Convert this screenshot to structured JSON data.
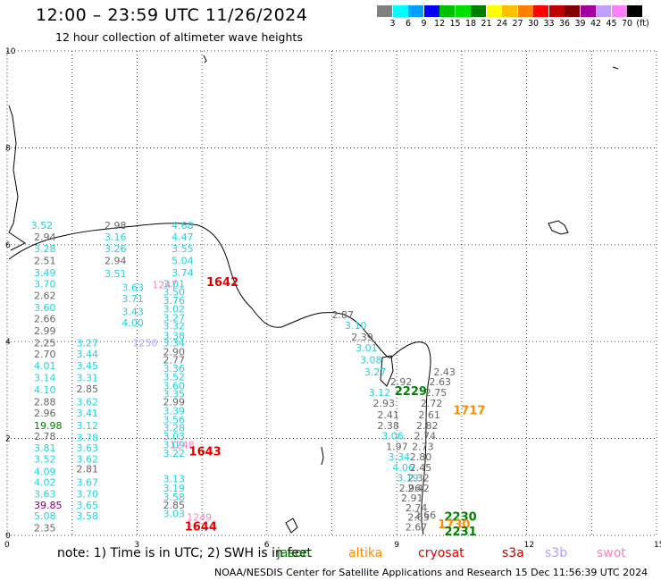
{
  "header": {
    "title": "12:00 – 23:59 UTC 11/26/2024",
    "subtitle": "12 hour collection of altimeter wave heights"
  },
  "colorbar": {
    "colors": [
      "#808080",
      "#00ffff",
      "#00a0ff",
      "#0000ff",
      "#00c000",
      "#00e000",
      "#008000",
      "#ffff00",
      "#ffc000",
      "#ff8000",
      "#ff0000",
      "#c00000",
      "#800000",
      "#a000a0",
      "#c0a0ff",
      "#ff80ff",
      "#000000"
    ],
    "tick_labels": [
      "3",
      "6",
      "9",
      "12",
      "15",
      "18",
      "21",
      "24",
      "27",
      "30",
      "33",
      "36",
      "39",
      "42",
      "45",
      "70",
      "(ft)"
    ]
  },
  "map": {
    "y_ticks": [
      "10",
      "8",
      "6",
      "4",
      "2",
      "0"
    ],
    "x_ticks": [
      "0",
      "3",
      "6",
      "9",
      "12",
      "15"
    ],
    "colors": {
      "jason": "#008000",
      "altika": "#ff8c00",
      "cryosat": "#e00000",
      "s3a": "#c00000",
      "s3b": "#b0a0ff",
      "swot": "#ff80c0",
      "gray": "#666666",
      "cyan": "#22d0e0",
      "purple": "#800080"
    },
    "observations": [
      {
        "text": "3.52",
        "c": "cyan",
        "x": 0.55,
        "y": 6.33
      },
      {
        "text": "2.98",
        "c": "gray",
        "x": 2.25,
        "y": 6.33
      },
      {
        "text": "2.94",
        "c": "gray",
        "x": 0.62,
        "y": 6.09
      },
      {
        "text": "3.16",
        "c": "cyan",
        "x": 2.25,
        "y": 6.09
      },
      {
        "text": "3.28",
        "c": "cyan",
        "x": 0.62,
        "y": 5.85
      },
      {
        "text": "3.26",
        "c": "cyan",
        "x": 2.25,
        "y": 5.85
      },
      {
        "text": "2.51",
        "c": "gray",
        "x": 0.62,
        "y": 5.6
      },
      {
        "text": "2.94",
        "c": "gray",
        "x": 2.25,
        "y": 5.6
      },
      {
        "text": "3.49",
        "c": "cyan",
        "x": 0.62,
        "y": 5.35
      },
      {
        "text": "3.51",
        "c": "cyan",
        "x": 2.25,
        "y": 5.33
      },
      {
        "text": "3.70",
        "c": "cyan",
        "x": 0.62,
        "y": 5.12
      },
      {
        "text": "3.63",
        "c": "cyan",
        "x": 2.65,
        "y": 5.05
      },
      {
        "text": "2.62",
        "c": "gray",
        "x": 0.62,
        "y": 4.88
      },
      {
        "text": "3.71",
        "c": "cyan",
        "x": 2.65,
        "y": 4.82
      },
      {
        "text": "3.60",
        "c": "cyan",
        "x": 0.62,
        "y": 4.63
      },
      {
        "text": "3.43",
        "c": "cyan",
        "x": 2.65,
        "y": 4.55
      },
      {
        "text": "2.66",
        "c": "gray",
        "x": 0.62,
        "y": 4.4
      },
      {
        "text": "4.00",
        "c": "cyan",
        "x": 2.65,
        "y": 4.32
      },
      {
        "text": "2.99",
        "c": "gray",
        "x": 0.62,
        "y": 4.15
      },
      {
        "text": "2.25",
        "c": "gray",
        "x": 0.62,
        "y": 3.9
      },
      {
        "text": "3.27",
        "c": "cyan",
        "x": 1.6,
        "y": 3.9
      },
      {
        "text": "2.70",
        "c": "gray",
        "x": 0.62,
        "y": 3.67
      },
      {
        "text": "3.44",
        "c": "cyan",
        "x": 1.6,
        "y": 3.67
      },
      {
        "text": "4.01",
        "c": "cyan",
        "x": 0.62,
        "y": 3.43
      },
      {
        "text": "3.45",
        "c": "cyan",
        "x": 1.6,
        "y": 3.43
      },
      {
        "text": "3.14",
        "c": "cyan",
        "x": 0.62,
        "y": 3.18
      },
      {
        "text": "3.31",
        "c": "cyan",
        "x": 1.6,
        "y": 3.18
      },
      {
        "text": "4.10",
        "c": "cyan",
        "x": 0.62,
        "y": 2.93
      },
      {
        "text": "2.85",
        "c": "gray",
        "x": 1.6,
        "y": 2.95
      },
      {
        "text": "2.88",
        "c": "gray",
        "x": 0.62,
        "y": 2.68
      },
      {
        "text": "3.62",
        "c": "cyan",
        "x": 1.6,
        "y": 2.68
      },
      {
        "text": "2.96",
        "c": "gray",
        "x": 0.62,
        "y": 2.45
      },
      {
        "text": "3.41",
        "c": "cyan",
        "x": 1.6,
        "y": 2.45
      },
      {
        "text": "19.98",
        "c": "jason",
        "x": 0.62,
        "y": 2.2
      },
      {
        "text": "3.12",
        "c": "cyan",
        "x": 1.6,
        "y": 2.2
      },
      {
        "text": "2.78",
        "c": "gray",
        "x": 0.62,
        "y": 1.97
      },
      {
        "text": "3.78",
        "c": "cyan",
        "x": 1.6,
        "y": 1.95
      },
      {
        "text": "3.81",
        "c": "cyan",
        "x": 0.62,
        "y": 1.73
      },
      {
        "text": "3.63",
        "c": "cyan",
        "x": 1.6,
        "y": 1.73
      },
      {
        "text": "3.52",
        "c": "cyan",
        "x": 0.62,
        "y": 1.5
      },
      {
        "text": "3.62",
        "c": "cyan",
        "x": 1.6,
        "y": 1.5
      },
      {
        "text": "4.09",
        "c": "cyan",
        "x": 0.62,
        "y": 1.25
      },
      {
        "text": "2.81",
        "c": "gray",
        "x": 1.6,
        "y": 1.3
      },
      {
        "text": "4.02",
        "c": "cyan",
        "x": 0.62,
        "y": 1.02
      },
      {
        "text": "3.67",
        "c": "cyan",
        "x": 1.6,
        "y": 1.02
      },
      {
        "text": "3.63",
        "c": "cyan",
        "x": 0.62,
        "y": 0.78
      },
      {
        "text": "3.70",
        "c": "cyan",
        "x": 1.6,
        "y": 0.78
      },
      {
        "text": "39.85",
        "c": "purple",
        "x": 0.62,
        "y": 0.55
      },
      {
        "text": "3.65",
        "c": "cyan",
        "x": 1.6,
        "y": 0.55
      },
      {
        "text": "5.08",
        "c": "cyan",
        "x": 0.62,
        "y": 0.33
      },
      {
        "text": "3.58",
        "c": "cyan",
        "x": 1.6,
        "y": 0.33
      },
      {
        "text": "2.35",
        "c": "gray",
        "x": 0.62,
        "y": 0.08
      },
      {
        "text": "4.68",
        "c": "cyan",
        "x": 3.8,
        "y": 6.33
      },
      {
        "text": "4.47",
        "c": "cyan",
        "x": 3.8,
        "y": 6.09
      },
      {
        "text": "3.55",
        "c": "cyan",
        "x": 3.8,
        "y": 5.85
      },
      {
        "text": "5.04",
        "c": "cyan",
        "x": 3.8,
        "y": 5.6
      },
      {
        "text": "3.74",
        "c": "cyan",
        "x": 3.8,
        "y": 5.35
      },
      {
        "text": "3.01",
        "c": "cyan",
        "x": 3.6,
        "y": 5.12
      },
      {
        "text": "3.50",
        "c": "cyan",
        "x": 3.6,
        "y": 4.95
      },
      {
        "text": "3.76",
        "c": "cyan",
        "x": 3.6,
        "y": 4.78
      },
      {
        "text": "3.02",
        "c": "cyan",
        "x": 3.6,
        "y": 4.6
      },
      {
        "text": "3.27",
        "c": "cyan",
        "x": 3.6,
        "y": 4.42
      },
      {
        "text": "3.32",
        "c": "cyan",
        "x": 3.6,
        "y": 4.25
      },
      {
        "text": "3.38",
        "c": "cyan",
        "x": 3.6,
        "y": 4.05
      },
      {
        "text": "3.34",
        "c": "cyan",
        "x": 3.6,
        "y": 3.9
      },
      {
        "text": "2.90",
        "c": "gray",
        "x": 3.6,
        "y": 3.72
      },
      {
        "text": "2.77",
        "c": "gray",
        "x": 3.6,
        "y": 3.55
      },
      {
        "text": "3.36",
        "c": "cyan",
        "x": 3.6,
        "y": 3.38
      },
      {
        "text": "3.52",
        "c": "cyan",
        "x": 3.6,
        "y": 3.2
      },
      {
        "text": "3.60",
        "c": "cyan",
        "x": 3.6,
        "y": 3.02
      },
      {
        "text": "3.35",
        "c": "cyan",
        "x": 3.6,
        "y": 2.85
      },
      {
        "text": "2.99",
        "c": "gray",
        "x": 3.6,
        "y": 2.68
      },
      {
        "text": "3.39",
        "c": "cyan",
        "x": 3.6,
        "y": 2.5
      },
      {
        "text": "3.56",
        "c": "cyan",
        "x": 3.6,
        "y": 2.32
      },
      {
        "text": "3.28",
        "c": "cyan",
        "x": 3.6,
        "y": 2.15
      },
      {
        "text": "3.03",
        "c": "cyan",
        "x": 3.6,
        "y": 1.97
      },
      {
        "text": "3.09",
        "c": "cyan",
        "x": 3.6,
        "y": 1.8
      },
      {
        "text": "3.22",
        "c": "cyan",
        "x": 3.6,
        "y": 1.62
      },
      {
        "text": "3.13",
        "c": "cyan",
        "x": 3.6,
        "y": 1.1
      },
      {
        "text": "3.19",
        "c": "cyan",
        "x": 3.6,
        "y": 0.9
      },
      {
        "text": "3.58",
        "c": "cyan",
        "x": 3.6,
        "y": 0.72
      },
      {
        "text": "2.85",
        "c": "gray",
        "x": 3.6,
        "y": 0.55
      },
      {
        "text": "3.03",
        "c": "cyan",
        "x": 3.6,
        "y": 0.38
      },
      {
        "text": "2.87",
        "c": "gray",
        "x": 7.5,
        "y": 4.48
      },
      {
        "text": "3.10",
        "c": "cyan",
        "x": 7.8,
        "y": 4.26
      },
      {
        "text": "2.39",
        "c": "gray",
        "x": 7.95,
        "y": 4.02
      },
      {
        "text": "3.01",
        "c": "cyan",
        "x": 8.05,
        "y": 3.8
      },
      {
        "text": "3.08",
        "c": "cyan",
        "x": 8.15,
        "y": 3.55
      },
      {
        "text": "3.27",
        "c": "cyan",
        "x": 8.25,
        "y": 3.3
      },
      {
        "text": "2.92",
        "c": "gray",
        "x": 8.85,
        "y": 3.1
      },
      {
        "text": "3.12",
        "c": "cyan",
        "x": 8.35,
        "y": 2.88
      },
      {
        "text": "2.93",
        "c": "gray",
        "x": 8.45,
        "y": 2.66
      },
      {
        "text": "2.41",
        "c": "gray",
        "x": 8.55,
        "y": 2.42
      },
      {
        "text": "2.38",
        "c": "gray",
        "x": 8.55,
        "y": 2.2
      },
      {
        "text": "3.06",
        "c": "cyan",
        "x": 8.65,
        "y": 1.98
      },
      {
        "text": "1.97",
        "c": "gray",
        "x": 8.75,
        "y": 1.76
      },
      {
        "text": "3.34",
        "c": "cyan",
        "x": 8.8,
        "y": 1.55
      },
      {
        "text": "4.06",
        "c": "cyan",
        "x": 8.9,
        "y": 1.33
      },
      {
        "text": "3.19",
        "c": "cyan",
        "x": 9.0,
        "y": 1.12
      },
      {
        "text": "2.96",
        "c": "gray",
        "x": 9.05,
        "y": 0.9
      },
      {
        "text": "2.91",
        "c": "gray",
        "x": 9.1,
        "y": 0.7
      },
      {
        "text": "2.74",
        "c": "gray",
        "x": 9.2,
        "y": 0.5
      },
      {
        "text": "2.63",
        "c": "gray",
        "x": 9.25,
        "y": 0.3
      },
      {
        "text": "2.43",
        "c": "gray",
        "x": 9.85,
        "y": 3.3
      },
      {
        "text": "2.63",
        "c": "gray",
        "x": 9.75,
        "y": 3.1
      },
      {
        "text": "2.75",
        "c": "gray",
        "x": 9.65,
        "y": 2.88
      },
      {
        "text": "2.72",
        "c": "gray",
        "x": 9.55,
        "y": 2.66
      },
      {
        "text": "2.61",
        "c": "gray",
        "x": 9.5,
        "y": 2.42
      },
      {
        "text": "2.82",
        "c": "gray",
        "x": 9.45,
        "y": 2.2
      },
      {
        "text": "2.74",
        "c": "gray",
        "x": 9.4,
        "y": 1.98
      },
      {
        "text": "2.73",
        "c": "gray",
        "x": 9.35,
        "y": 1.76
      },
      {
        "text": "2.80",
        "c": "gray",
        "x": 9.3,
        "y": 1.55
      },
      {
        "text": "2.45",
        "c": "gray",
        "x": 9.3,
        "y": 1.33
      },
      {
        "text": "2.32",
        "c": "gray",
        "x": 9.25,
        "y": 1.12
      },
      {
        "text": "2.42",
        "c": "gray",
        "x": 9.25,
        "y": 0.9
      },
      {
        "text": "2.67",
        "c": "gray",
        "x": 9.2,
        "y": 0.1
      },
      {
        "text": "2.66",
        "c": "gray",
        "x": 9.4,
        "y": 0.35
      },
      {
        "text": "1247",
        "c": "swot",
        "x": 3.35,
        "y": 5.1
      },
      {
        "text": "1250",
        "c": "s3b",
        "x": 2.9,
        "y": 3.9
      },
      {
        "text": "1248",
        "c": "swot",
        "x": 3.75,
        "y": 1.8
      },
      {
        "text": "1249",
        "c": "swot",
        "x": 4.15,
        "y": 0.3
      }
    ],
    "pass_labels": [
      {
        "text": "1642",
        "c": "cryosat",
        "x": 4.6,
        "y": 5.15
      },
      {
        "text": "1643",
        "c": "cryosat",
        "x": 4.2,
        "y": 1.65
      },
      {
        "text": "1644",
        "c": "cryosat",
        "x": 4.1,
        "y": 0.1
      },
      {
        "text": "2229",
        "c": "jason",
        "x": 8.95,
        "y": 2.9
      },
      {
        "text": "1717",
        "c": "altika",
        "x": 10.3,
        "y": 2.5
      },
      {
        "text": "2230",
        "c": "jason",
        "x": 10.1,
        "y": 0.3
      },
      {
        "text": "1730",
        "c": "altika",
        "x": 9.95,
        "y": 0.15
      },
      {
        "text": "2231",
        "c": "jason",
        "x": 10.1,
        "y": 0.0
      }
    ]
  },
  "legend": {
    "note": "note:  1) Time is in UTC; 2) SWH is in feet",
    "items": [
      {
        "label": "jason",
        "color": "#008000"
      },
      {
        "label": "altika",
        "color": "#ff8c00"
      },
      {
        "label": "cryosat",
        "color": "#e00000"
      },
      {
        "label": "s3a",
        "color": "#c00000"
      },
      {
        "label": "s3b",
        "color": "#b0a0ff"
      },
      {
        "label": "swot",
        "color": "#ff80c0"
      }
    ]
  },
  "footer": {
    "text": "NOAA/NESDIS Center for Satellite Applications and Research    15 Dec 11:56:39 UTC 2024"
  }
}
